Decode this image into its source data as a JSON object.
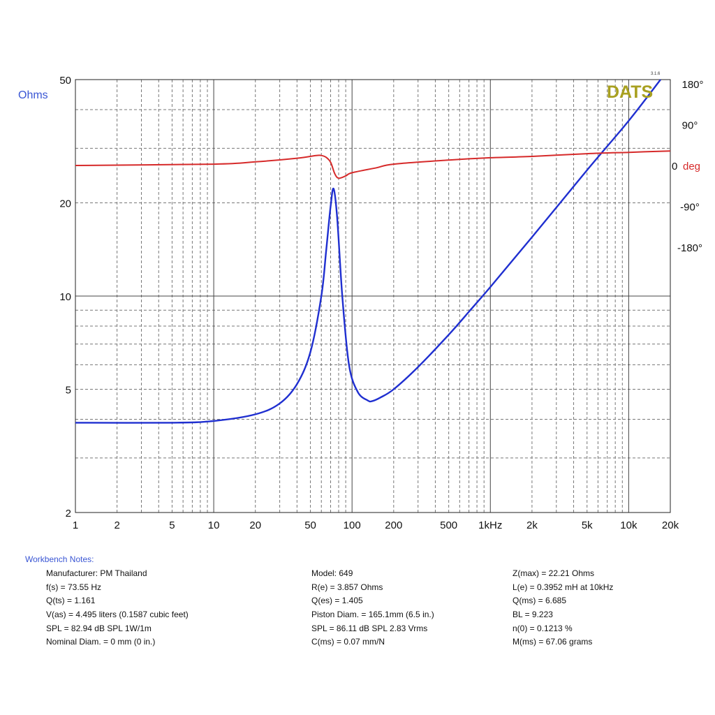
{
  "chart_data": {
    "type": "line",
    "x_scale": "log",
    "y_scale": "log",
    "xlim": [
      1,
      20000
    ],
    "ylim": [
      2,
      50
    ],
    "y2lim": [
      -180,
      180
    ],
    "ylabel": "Ohms",
    "y2label": "deg",
    "x_tick_labels": [
      {
        "value": 1,
        "label": "1"
      },
      {
        "value": 2,
        "label": "2"
      },
      {
        "value": 5,
        "label": "5"
      },
      {
        "value": 10,
        "label": "10"
      },
      {
        "value": 20,
        "label": "20"
      },
      {
        "value": 50,
        "label": "50"
      },
      {
        "value": 100,
        "label": "100"
      },
      {
        "value": 200,
        "label": "200"
      },
      {
        "value": 500,
        "label": "500"
      },
      {
        "value": 1000,
        "label": "1kHz"
      },
      {
        "value": 2000,
        "label": "2k"
      },
      {
        "value": 5000,
        "label": "5k"
      },
      {
        "value": 10000,
        "label": "10k"
      },
      {
        "value": 20000,
        "label": "20k"
      }
    ],
    "y_tick_labels": [
      {
        "value": 2,
        "label": "2"
      },
      {
        "value": 5,
        "label": "5"
      },
      {
        "value": 10,
        "label": "10"
      },
      {
        "value": 20,
        "label": "20"
      },
      {
        "value": 50,
        "label": "50"
      }
    ],
    "y2_tick_labels": [
      {
        "value": 180,
        "label": "180°"
      },
      {
        "value": 90,
        "label": "90°"
      },
      {
        "value": 0,
        "label": "0"
      },
      {
        "value": -90,
        "label": "-90°"
      },
      {
        "value": -180,
        "label": "-180°"
      }
    ],
    "grid": true,
    "series": [
      {
        "axis": "left",
        "color": "#1f2fd0",
        "points": [
          [
            1,
            3.9
          ],
          [
            5,
            3.9
          ],
          [
            10,
            3.95
          ],
          [
            20,
            4.15
          ],
          [
            30,
            4.5
          ],
          [
            40,
            5.2
          ],
          [
            50,
            6.6
          ],
          [
            60,
            10.0
          ],
          [
            65,
            14.0
          ],
          [
            70,
            19.5
          ],
          [
            73.55,
            22.21
          ],
          [
            78,
            18.0
          ],
          [
            85,
            10.0
          ],
          [
            95,
            6.0
          ],
          [
            110,
            4.9
          ],
          [
            130,
            4.6
          ],
          [
            140,
            4.58
          ],
          [
            160,
            4.7
          ],
          [
            200,
            5.0
          ],
          [
            300,
            5.9
          ],
          [
            500,
            7.5
          ],
          [
            700,
            8.9
          ],
          [
            1000,
            10.7
          ],
          [
            2000,
            15.5
          ],
          [
            5000,
            25.5
          ],
          [
            10000,
            36.8
          ],
          [
            17000,
            50
          ]
        ]
      },
      {
        "axis": "right",
        "color": "#d62a2a",
        "points": [
          [
            1,
            0
          ],
          [
            10,
            3
          ],
          [
            20,
            8
          ],
          [
            40,
            16
          ],
          [
            55,
            22
          ],
          [
            60,
            22
          ],
          [
            65,
            18
          ],
          [
            70,
            7
          ],
          [
            75,
            -18
          ],
          [
            80,
            -28
          ],
          [
            90,
            -23
          ],
          [
            100,
            -16
          ],
          [
            150,
            -5
          ],
          [
            200,
            3
          ],
          [
            500,
            12
          ],
          [
            1000,
            17
          ],
          [
            2000,
            20
          ],
          [
            5000,
            26
          ],
          [
            10000,
            29
          ],
          [
            20000,
            32
          ]
        ]
      }
    ]
  },
  "brand": {
    "logo_text": "DATS",
    "version": "3.1.6"
  },
  "notes": {
    "title": "Workbench Notes:",
    "col1": [
      "Manufacturer: PM Thailand",
      "f(s) = 73.55 Hz",
      "Q(ts) = 1.161",
      "V(as) = 4.495 liters  (0.1587 cubic feet)",
      "SPL = 82.94 dB SPL 1W/1m",
      "Nominal Diam. = 0 mm (0 in.)"
    ],
    "col2": [
      "Model: 649",
      "R(e) = 3.857 Ohms",
      "Q(es) = 1.405",
      "Piston Diam. = 165.1mm (6.5 in.)",
      "SPL = 86.11 dB SPL 2.83 Vrms",
      "C(ms) = 0.07 mm/N"
    ],
    "col3": [
      "Z(max) = 22.21 Ohms",
      "L(e) = 0.3952 mH at 10kHz",
      "Q(ms) = 6.685",
      "BL = 9.223",
      "n(0) = 0.1213 %",
      "M(ms) = 67.06 grams"
    ]
  },
  "colors": {
    "impedance": "#1f2fd0",
    "phase": "#d62a2a",
    "ohms_label": "#3a56d4",
    "deg_label": "#d62a2a",
    "logo": "#a8a020"
  }
}
